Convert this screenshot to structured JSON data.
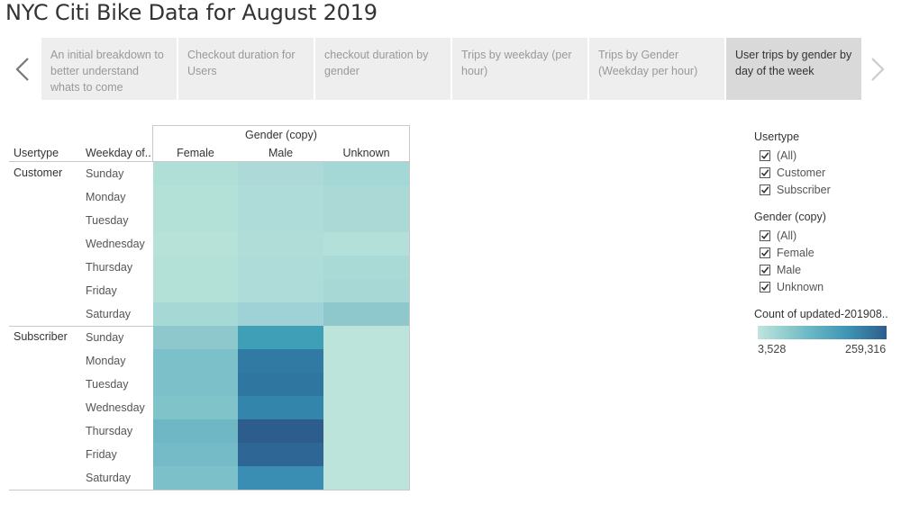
{
  "title": "NYC Citi Bike Data for August 2019",
  "story_nav": {
    "prev_icon": "chevron-left-icon",
    "next_icon": "chevron-right-icon",
    "points": [
      {
        "label": "An initial breakdown to better understand whats to come",
        "active": false
      },
      {
        "label": "Checkout duration for Users",
        "active": false
      },
      {
        "label": "checkout duration by gender",
        "active": false
      },
      {
        "label": "Trips by weekday (per hour)",
        "active": false
      },
      {
        "label": "Trips by Gender (Weekday per hour)",
        "active": false
      },
      {
        "label": "User trips by gender by day of the week",
        "active": true
      }
    ]
  },
  "table": {
    "column_group_header": "Gender (copy)",
    "row_headers": [
      "Usertype",
      "Weekday of.."
    ],
    "columns": [
      "Female",
      "Male",
      "Unknown"
    ],
    "groups": [
      {
        "name": "Customer",
        "rows": [
          {
            "day": "Sunday",
            "colors": [
              "#afdfd6",
              "#add9d8",
              "#a4d8d6"
            ]
          },
          {
            "day": "Monday",
            "colors": [
              "#b3e1d8",
              "#aedcd8",
              "#abdad6"
            ]
          },
          {
            "day": "Tuesday",
            "colors": [
              "#b3e1d8",
              "#aedcd8",
              "#abdad6"
            ]
          },
          {
            "day": "Wednesday",
            "colors": [
              "#b6e2d8",
              "#b0ddd8",
              "#b3e0d8"
            ]
          },
          {
            "day": "Thursday",
            "colors": [
              "#b3e1d8",
              "#aedcd8",
              "#aadad6"
            ]
          },
          {
            "day": "Friday",
            "colors": [
              "#b3e1d8",
              "#aedcd8",
              "#a7d8d5"
            ]
          },
          {
            "day": "Saturday",
            "colors": [
              "#a6d9d5",
              "#9ed2d6",
              "#8ec8cd"
            ]
          }
        ]
      },
      {
        "name": "Subscriber",
        "rows": [
          {
            "day": "Sunday",
            "colors": [
              "#8ec8cc",
              "#3e9fb7",
              "#bce4da"
            ]
          },
          {
            "day": "Monday",
            "colors": [
              "#7cc0c9",
              "#317aa3",
              "#bce4da"
            ]
          },
          {
            "day": "Tuesday",
            "colors": [
              "#7cc0c9",
              "#2f76a1",
              "#bce4da"
            ]
          },
          {
            "day": "Wednesday",
            "colors": [
              "#80c3c9",
              "#3485ab",
              "#bce4da"
            ]
          },
          {
            "day": "Thursday",
            "colors": [
              "#6fb7c5",
              "#2d5d8c",
              "#bce4da"
            ]
          },
          {
            "day": "Friday",
            "colors": [
              "#75bbc7",
              "#2e6796",
              "#bce4da"
            ]
          },
          {
            "day": "Saturday",
            "colors": [
              "#7cc0c9",
              "#3a8db3",
              "#bce4da"
            ]
          }
        ]
      }
    ]
  },
  "filters": [
    {
      "title": "Usertype",
      "items": [
        {
          "label": "(All)",
          "checked": true
        },
        {
          "label": "Customer",
          "checked": true
        },
        {
          "label": "Subscriber",
          "checked": true
        }
      ]
    },
    {
      "title": "Gender (copy)",
      "items": [
        {
          "label": "(All)",
          "checked": true
        },
        {
          "label": "Female",
          "checked": true
        },
        {
          "label": "Male",
          "checked": true
        },
        {
          "label": "Unknown",
          "checked": true
        }
      ]
    }
  ],
  "color_legend": {
    "title": "Count of updated-201908..",
    "min": "3,528",
    "max": "259,316",
    "colors": [
      "#bfe5dc",
      "#2e5d8b"
    ]
  }
}
